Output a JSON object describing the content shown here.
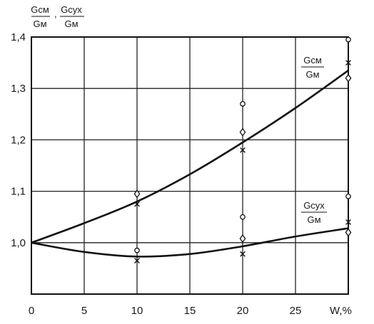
{
  "chart_data": {
    "type": "line",
    "xlabel": "W,%",
    "ylabel": {
      "a_num": "Gсм",
      "a_den": "Gм",
      "sep": ",",
      "b_num": "Gсух",
      "b_den": "Gм"
    },
    "xlim": [
      0,
      30
    ],
    "ylim": [
      0.9,
      1.4
    ],
    "x_ticks": [
      0,
      5,
      10,
      15,
      20,
      25
    ],
    "x_tick_labels": [
      "0",
      "5",
      "10",
      "15",
      "20",
      "25"
    ],
    "y_ticks": [
      1.0,
      1.1,
      1.2,
      1.3,
      1.4
    ],
    "y_tick_labels": [
      "1,0",
      "1,1",
      "1,2",
      "1,3",
      "1,4"
    ],
    "grid": true,
    "series": [
      {
        "label_num": "Gсм",
        "label_den": "Gм",
        "curve_x": [
          0,
          5,
          10,
          15,
          20,
          25,
          30
        ],
        "curve_y": [
          1.0,
          1.038,
          1.08,
          1.133,
          1.195,
          1.262,
          1.335
        ],
        "markers": [
          {
            "x": 10,
            "y": 1.095,
            "m": "diamond"
          },
          {
            "x": 10,
            "y": 1.075,
            "m": "x"
          },
          {
            "x": 20,
            "y": 1.27,
            "m": "circle"
          },
          {
            "x": 20,
            "y": 1.215,
            "m": "diamond"
          },
          {
            "x": 20,
            "y": 1.18,
            "m": "x"
          },
          {
            "x": 30,
            "y": 1.395,
            "m": "circle"
          },
          {
            "x": 30,
            "y": 1.35,
            "m": "x"
          },
          {
            "x": 30,
            "y": 1.32,
            "m": "diamond"
          }
        ]
      },
      {
        "label_num": "Gсух",
        "label_den": "Gм",
        "curve_x": [
          0,
          5,
          10,
          15,
          20,
          25,
          30
        ],
        "curve_y": [
          1.0,
          0.982,
          0.973,
          0.978,
          0.993,
          1.012,
          1.028
        ],
        "markers": [
          {
            "x": 10,
            "y": 0.985,
            "m": "circle"
          },
          {
            "x": 10,
            "y": 0.965,
            "m": "x"
          },
          {
            "x": 20,
            "y": 1.05,
            "m": "circle"
          },
          {
            "x": 20,
            "y": 1.008,
            "m": "diamond"
          },
          {
            "x": 20,
            "y": 0.978,
            "m": "x"
          },
          {
            "x": 30,
            "y": 1.09,
            "m": "circle"
          },
          {
            "x": 30,
            "y": 1.04,
            "m": "x"
          },
          {
            "x": 30,
            "y": 1.02,
            "m": "diamond"
          }
        ]
      }
    ]
  }
}
